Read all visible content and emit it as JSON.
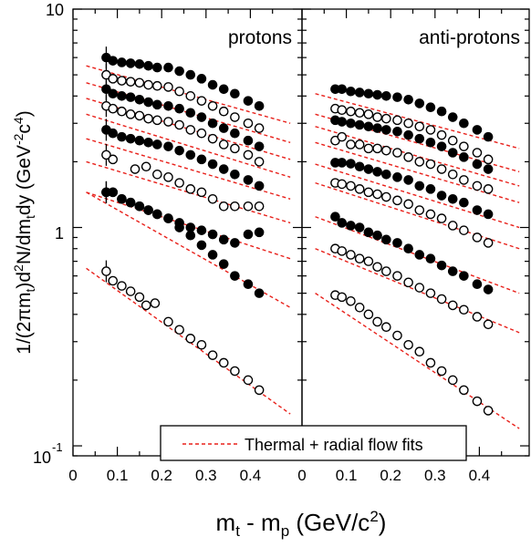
{
  "chart_data": {
    "type": "scatter",
    "ylabel_parts": [
      "1/(2πm",
      "t",
      ")d",
      "2",
      "N/dm",
      "t",
      "dy (GeV",
      "-2",
      "c",
      "4",
      ")"
    ],
    "xlabel_parts": [
      "m",
      "t",
      " - m",
      "p",
      " (GeV/c",
      "2",
      ")"
    ],
    "y_scale": "log",
    "ylim": [
      0.09,
      10
    ],
    "y_ticks": [
      {
        "base": "10",
        "exp": "",
        "value": 10
      },
      {
        "base": "1",
        "exp": "",
        "value": 1
      },
      {
        "base": "10",
        "exp": "-1",
        "value": 0.1
      }
    ],
    "xlim": [
      0,
      0.49
    ],
    "x_ticks": [
      "0",
      "0.1",
      "0.2",
      "0.3",
      "0.4"
    ],
    "x_tick_values": [
      0,
      0.1,
      0.2,
      0.3,
      0.4
    ],
    "legend": {
      "label": "Thermal + radial flow fits",
      "line_color": "#e8201a",
      "line_style": "dashed",
      "placement": "bottom-right"
    },
    "panels": [
      {
        "title": "protons",
        "series": [
          {
            "marker": "filled",
            "x": [
              0.075,
              0.09,
              0.11,
              0.13,
              0.15,
              0.17,
              0.19,
              0.215,
              0.24,
              0.265,
              0.29,
              0.315,
              0.34,
              0.365,
              0.395,
              0.42
            ],
            "y": [
              6.0,
              5.8,
              5.7,
              5.65,
              5.6,
              5.5,
              5.4,
              5.4,
              5.2,
              5.0,
              4.8,
              4.5,
              4.3,
              4.1,
              3.8,
              3.6
            ],
            "fit": [
              [
                0.03,
                5.5
              ],
              [
                0.49,
                3.0
              ]
            ]
          },
          {
            "marker": "open",
            "x": [
              0.075,
              0.09,
              0.11,
              0.13,
              0.15,
              0.17,
              0.19,
              0.215,
              0.24,
              0.265,
              0.29,
              0.315,
              0.34,
              0.365,
              0.395,
              0.42
            ],
            "y": [
              5.0,
              4.8,
              4.7,
              4.65,
              4.6,
              4.5,
              4.45,
              4.4,
              4.2,
              4.0,
              3.8,
              3.6,
              3.4,
              3.2,
              3.0,
              2.85
            ],
            "fit": [
              [
                0.03,
                4.6
              ],
              [
                0.49,
                2.45
              ]
            ]
          },
          {
            "marker": "filled",
            "x": [
              0.075,
              0.09,
              0.11,
              0.13,
              0.15,
              0.17,
              0.19,
              0.215,
              0.24,
              0.265,
              0.29,
              0.315,
              0.34,
              0.365,
              0.395,
              0.42
            ],
            "y": [
              4.3,
              4.1,
              4.0,
              3.95,
              3.85,
              3.75,
              3.65,
              3.6,
              3.5,
              3.35,
              3.2,
              3.0,
              2.85,
              2.7,
              2.5,
              2.35
            ],
            "fit": [
              [
                0.03,
                3.9
              ],
              [
                0.49,
                2.05
              ]
            ]
          },
          {
            "marker": "open",
            "x": [
              0.075,
              0.09,
              0.11,
              0.13,
              0.15,
              0.17,
              0.19,
              0.215,
              0.24,
              0.265,
              0.29,
              0.315,
              0.34,
              0.365,
              0.395,
              0.42
            ],
            "y": [
              3.6,
              3.5,
              3.4,
              3.3,
              3.25,
              3.15,
              3.1,
              3.05,
              2.95,
              2.8,
              2.7,
              2.55,
              2.4,
              2.3,
              2.15,
              2.0
            ],
            "fit": [
              [
                0.03,
                3.3
              ],
              [
                0.49,
                1.7
              ]
            ]
          },
          {
            "marker": "filled",
            "x": [
              0.075,
              0.09,
              0.11,
              0.13,
              0.15,
              0.17,
              0.19,
              0.215,
              0.24,
              0.265,
              0.29,
              0.315,
              0.34,
              0.365,
              0.395,
              0.42
            ],
            "y": [
              2.8,
              2.7,
              2.6,
              2.55,
              2.5,
              2.45,
              2.4,
              2.35,
              2.25,
              2.15,
              2.05,
              1.95,
              1.85,
              1.75,
              1.65,
              1.55
            ],
            "fit": [
              [
                0.03,
                2.55
              ],
              [
                0.49,
                1.35
              ]
            ]
          },
          {
            "marker": "open",
            "x": [
              0.075,
              0.09,
              0.14,
              0.165,
              0.19,
              0.215,
              0.24,
              0.265,
              0.29,
              0.315,
              0.34,
              0.365,
              0.395,
              0.42
            ],
            "y": [
              2.15,
              2.05,
              1.85,
              1.9,
              1.75,
              1.7,
              1.6,
              1.5,
              1.45,
              1.35,
              1.25,
              1.25,
              1.25,
              1.25
            ],
            "fit": [
              [
                0.03,
                2.0
              ],
              [
                0.49,
                1.05
              ]
            ]
          },
          {
            "marker": "filled",
            "x": [
              0.075,
              0.09,
              0.11,
              0.13,
              0.15,
              0.17,
              0.19,
              0.215,
              0.24,
              0.265,
              0.29,
              0.315,
              0.34,
              0.365,
              0.395,
              0.42
            ],
            "y": [
              1.45,
              1.45,
              1.35,
              1.3,
              1.25,
              1.2,
              1.15,
              1.1,
              1.05,
              1.0,
              0.97,
              0.93,
              0.88,
              0.85,
              0.93,
              0.95
            ],
            "fit": [
              [
                0.03,
                1.45
              ],
              [
                0.49,
                0.72
              ]
            ]
          },
          {
            "marker": "filled",
            "x": [
              0.075,
              0.09,
              0.11,
              0.13,
              0.15,
              0.17,
              0.19,
              0.215,
              0.24,
              0.265,
              0.29,
              0.315,
              0.34,
              0.365,
              0.395,
              0.42
            ],
            "y": [
              1.45,
              1.45,
              1.35,
              1.3,
              1.25,
              1.2,
              1.15,
              1.1,
              1.0,
              0.92,
              0.83,
              0.75,
              0.68,
              0.6,
              0.55,
              0.5
            ],
            "fit": [
              [
                0.03,
                1.45
              ],
              [
                0.49,
                0.43
              ]
            ]
          },
          {
            "marker": "open",
            "x": [
              0.075,
              0.09,
              0.11,
              0.13,
              0.15,
              0.165,
              0.185,
              0.215,
              0.24,
              0.265,
              0.29,
              0.315,
              0.34,
              0.365,
              0.395,
              0.42
            ],
            "y": [
              0.63,
              0.57,
              0.54,
              0.51,
              0.48,
              0.44,
              0.45,
              0.37,
              0.34,
              0.31,
              0.29,
              0.26,
              0.24,
              0.22,
              0.2,
              0.18
            ],
            "fit": [
              [
                0.03,
                0.65
              ],
              [
                0.49,
                0.14
              ]
            ]
          }
        ]
      },
      {
        "title": "anti-protons",
        "series": [
          {
            "marker": "filled",
            "x": [
              0.075,
              0.09,
              0.11,
              0.13,
              0.15,
              0.17,
              0.19,
              0.215,
              0.24,
              0.265,
              0.29,
              0.315,
              0.34,
              0.365,
              0.395,
              0.42
            ],
            "y": [
              4.3,
              4.3,
              4.2,
              4.15,
              4.1,
              4.05,
              4.0,
              3.95,
              3.85,
              3.7,
              3.55,
              3.4,
              3.2,
              3.0,
              2.8,
              2.6
            ],
            "fit": [
              [
                0.03,
                4.1
              ],
              [
                0.49,
                2.3
              ]
            ]
          },
          {
            "marker": "open",
            "x": [
              0.075,
              0.09,
              0.11,
              0.13,
              0.15,
              0.17,
              0.19,
              0.215,
              0.24,
              0.265,
              0.29,
              0.315,
              0.34,
              0.365,
              0.395,
              0.42
            ],
            "y": [
              3.5,
              3.45,
              3.4,
              3.35,
              3.3,
              3.2,
              3.15,
              3.1,
              3.0,
              2.9,
              2.8,
              2.65,
              2.5,
              2.35,
              2.2,
              2.05
            ],
            "fit": [
              [
                0.03,
                3.3
              ],
              [
                0.49,
                1.8
              ]
            ]
          },
          {
            "marker": "filled",
            "x": [
              0.075,
              0.09,
              0.11,
              0.13,
              0.15,
              0.17,
              0.19,
              0.215,
              0.24,
              0.265,
              0.29,
              0.315,
              0.34,
              0.365,
              0.395,
              0.42
            ],
            "y": [
              3.1,
              3.05,
              3.0,
              2.95,
              2.9,
              2.85,
              2.8,
              2.75,
              2.65,
              2.55,
              2.45,
              2.35,
              2.2,
              2.1,
              1.95,
              1.85
            ],
            "fit": [
              [
                0.03,
                2.9
              ],
              [
                0.49,
                1.55
              ]
            ]
          },
          {
            "marker": "open",
            "x": [
              0.075,
              0.09,
              0.11,
              0.13,
              0.15,
              0.17,
              0.19,
              0.215,
              0.24,
              0.265,
              0.29,
              0.315,
              0.34,
              0.365,
              0.395,
              0.42
            ],
            "y": [
              2.5,
              2.6,
              2.4,
              2.4,
              2.3,
              2.3,
              2.25,
              2.2,
              2.1,
              2.0,
              1.95,
              1.85,
              1.75,
              1.65,
              1.55,
              1.5
            ],
            "fit": [
              [
                0.03,
                2.45
              ],
              [
                0.49,
                1.3
              ]
            ]
          },
          {
            "marker": "filled",
            "x": [
              0.075,
              0.09,
              0.11,
              0.13,
              0.15,
              0.17,
              0.19,
              0.215,
              0.24,
              0.265,
              0.29,
              0.315,
              0.34,
              0.365,
              0.395,
              0.42
            ],
            "y": [
              1.98,
              1.98,
              1.96,
              1.9,
              1.85,
              1.8,
              1.75,
              1.7,
              1.65,
              1.55,
              1.5,
              1.4,
              1.35,
              1.3,
              1.2,
              1.15
            ],
            "fit": [
              [
                0.03,
                1.95
              ],
              [
                0.49,
                1.0
              ]
            ]
          },
          {
            "marker": "open",
            "x": [
              0.075,
              0.09,
              0.11,
              0.13,
              0.15,
              0.17,
              0.19,
              0.215,
              0.24,
              0.265,
              0.29,
              0.315,
              0.34,
              0.365,
              0.395,
              0.42
            ],
            "y": [
              1.6,
              1.58,
              1.55,
              1.5,
              1.45,
              1.42,
              1.38,
              1.33,
              1.28,
              1.2,
              1.15,
              1.1,
              1.02,
              0.97,
              0.9,
              0.85
            ],
            "fit": [
              [
                0.03,
                1.6
              ],
              [
                0.49,
                0.8
              ]
            ]
          },
          {
            "marker": "filled",
            "x": [
              0.075,
              0.09,
              0.11,
              0.13,
              0.15,
              0.17,
              0.19,
              0.215,
              0.24,
              0.265,
              0.29,
              0.315,
              0.34,
              0.365,
              0.395,
              0.42
            ],
            "y": [
              1.12,
              1.05,
              1.02,
              1.0,
              0.95,
              0.92,
              0.88,
              0.85,
              0.8,
              0.75,
              0.72,
              0.67,
              0.63,
              0.6,
              0.55,
              0.52
            ],
            "fit": [
              [
                0.03,
                1.12
              ],
              [
                0.49,
                0.5
              ]
            ]
          },
          {
            "marker": "open",
            "x": [
              0.075,
              0.09,
              0.11,
              0.13,
              0.15,
              0.17,
              0.19,
              0.215,
              0.24,
              0.265,
              0.29,
              0.315,
              0.34,
              0.365,
              0.395,
              0.42
            ],
            "y": [
              0.8,
              0.78,
              0.75,
              0.72,
              0.7,
              0.66,
              0.63,
              0.6,
              0.56,
              0.53,
              0.5,
              0.47,
              0.44,
              0.42,
              0.39,
              0.36
            ],
            "fit": [
              [
                0.03,
                0.8
              ],
              [
                0.49,
                0.33
              ]
            ]
          },
          {
            "marker": "open",
            "x": [
              0.075,
              0.09,
              0.11,
              0.13,
              0.15,
              0.17,
              0.19,
              0.215,
              0.24,
              0.265,
              0.29,
              0.315,
              0.34,
              0.365,
              0.395,
              0.42
            ],
            "y": [
              0.49,
              0.48,
              0.46,
              0.43,
              0.4,
              0.37,
              0.35,
              0.32,
              0.29,
              0.27,
              0.24,
              0.22,
              0.2,
              0.18,
              0.16,
              0.145
            ],
            "fit": [
              [
                0.03,
                0.5
              ],
              [
                0.49,
                0.12
              ]
            ]
          }
        ]
      }
    ]
  }
}
